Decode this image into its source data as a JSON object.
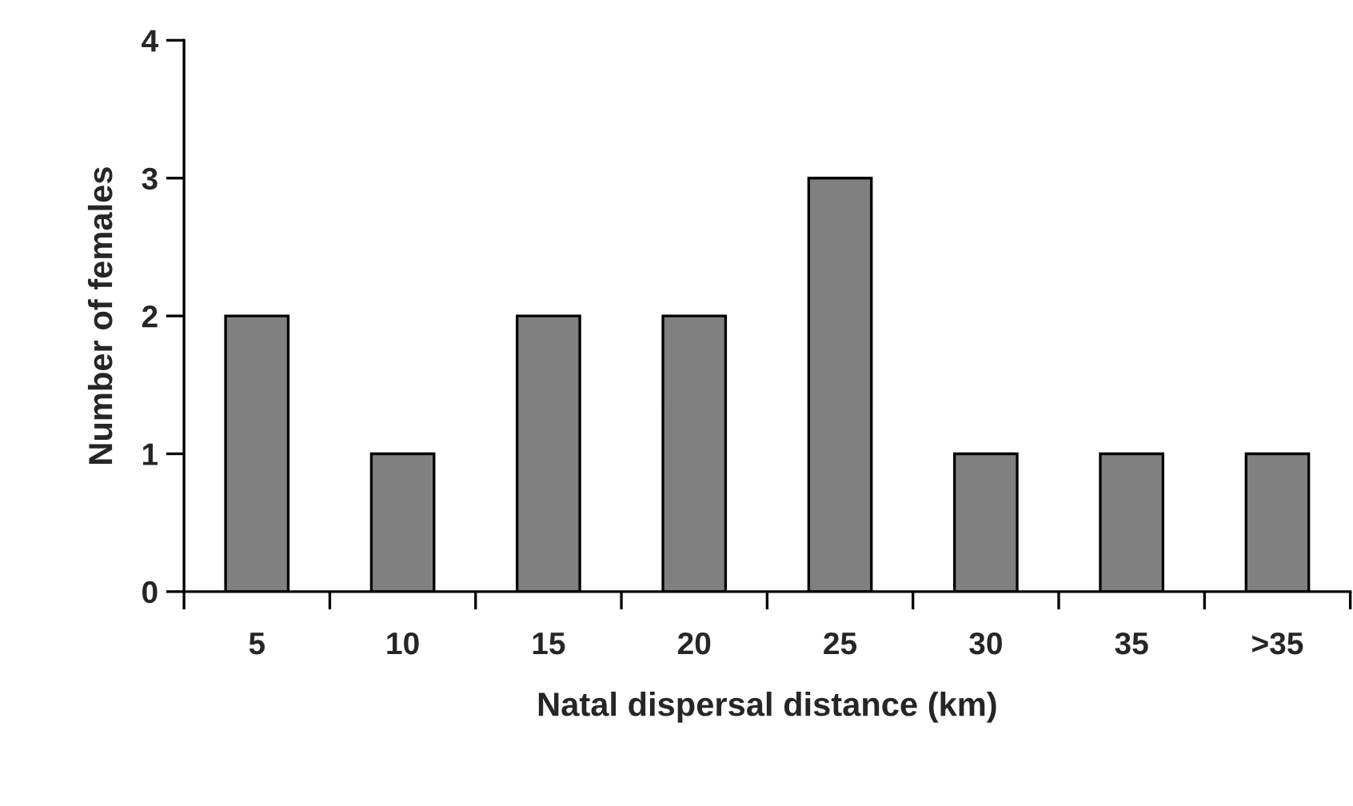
{
  "chart_data": {
    "type": "bar",
    "xlabel": "Natal dispersal distance (km)",
    "ylabel": "Number of females",
    "categories": [
      "5",
      "10",
      "15",
      "20",
      "25",
      "30",
      "35",
      ">35"
    ],
    "values": [
      2,
      1,
      2,
      2,
      3,
      1,
      1,
      1
    ],
    "color": "#808080",
    "ylim": [
      0,
      4
    ],
    "yticks": [
      0,
      1,
      2,
      3,
      4
    ],
    "grid": false,
    "legend": false
  }
}
